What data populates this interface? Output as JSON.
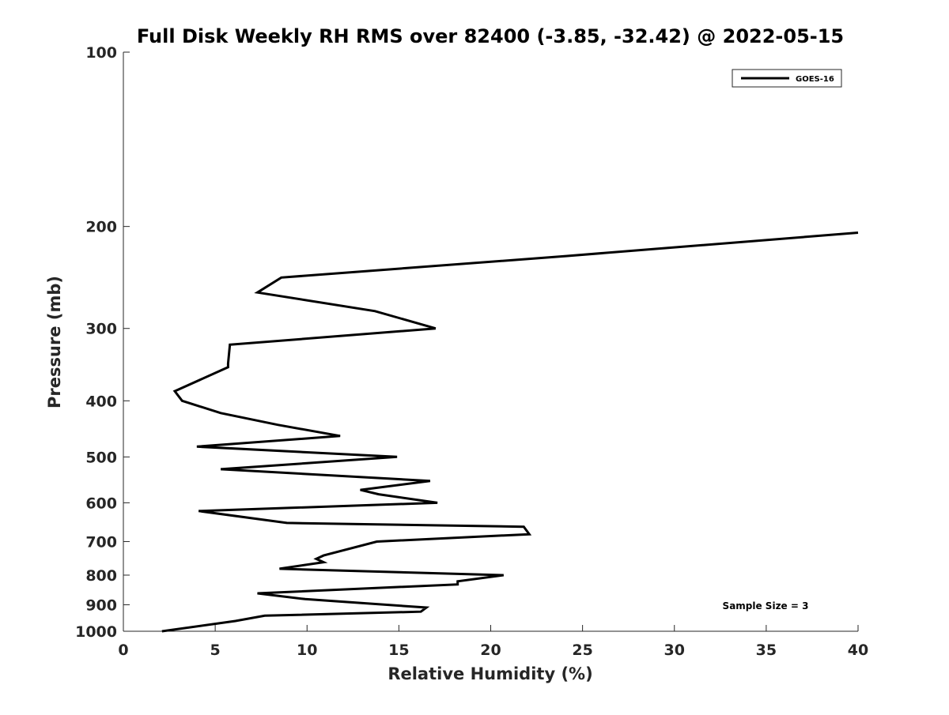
{
  "chart_data": {
    "type": "line",
    "title": "Full Disk Weekly RH RMS over 82400 (-3.85, -32.42) @ 2022-05-15",
    "xlabel": "Relative Humidity (%)",
    "ylabel": "Pressure (mb)",
    "xlim": [
      0,
      40
    ],
    "ylim": [
      100,
      1000
    ],
    "yscale": "log",
    "y_reversed": true,
    "xticks": [
      0,
      5,
      10,
      15,
      20,
      25,
      30,
      35,
      40
    ],
    "yticks": [
      100,
      200,
      300,
      400,
      500,
      600,
      700,
      800,
      900,
      1000
    ],
    "grid": false,
    "legend_position": "top-right",
    "annotation": "Sample Size = 3",
    "series": [
      {
        "name": "GOES-16",
        "color": "#000000",
        "x": [
          2.1,
          6.1,
          7.7,
          16.2,
          16.5,
          9.9,
          7.3,
          18.2,
          18.2,
          20.7,
          8.5,
          10.9,
          10.5,
          10.9,
          13.8,
          22.1,
          21.8,
          8.9,
          4.1,
          17.1,
          13.9,
          12.9,
          16.7,
          5.3,
          14.9,
          4.0,
          11.8,
          8.4,
          5.3,
          3.2,
          2.8,
          5.7,
          5.7,
          5.8,
          17.0,
          13.7,
          7.3,
          8.6,
          24.1,
          40.0
        ],
        "y": [
          1000,
          960,
          940,
          925,
          910,
          880,
          860,
          830,
          820,
          800,
          780,
          760,
          750,
          740,
          700,
          680,
          660,
          650,
          620,
          600,
          580,
          570,
          550,
          525,
          500,
          480,
          460,
          440,
          420,
          400,
          385,
          350,
          345,
          320,
          300,
          280,
          260,
          245,
          225,
          205
        ]
      }
    ]
  }
}
